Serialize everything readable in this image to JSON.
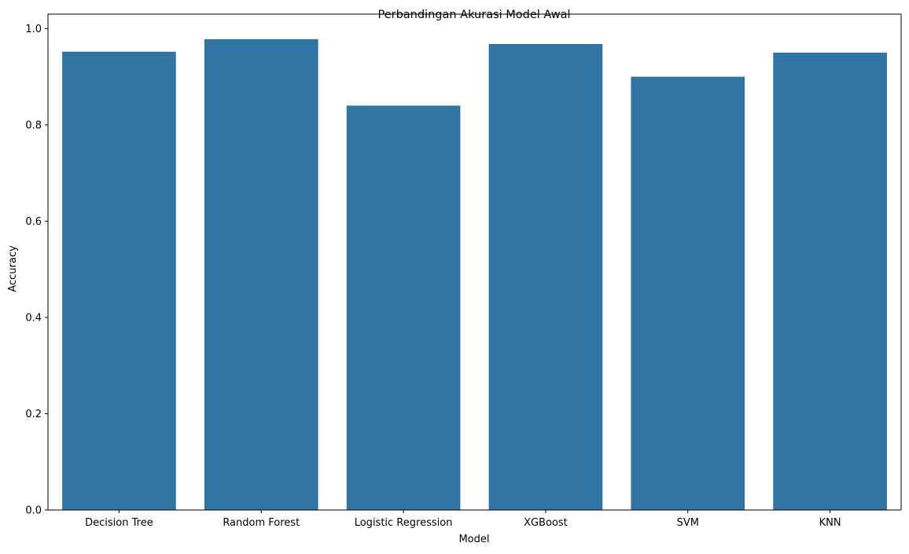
{
  "chart_data": {
    "type": "bar",
    "title": "Perbandingan Akurasi Model Awal",
    "xlabel": "Model",
    "ylabel": "Accuracy",
    "categories": [
      "Decision Tree",
      "Random Forest",
      "Logistic Regression",
      "XGBoost",
      "SVM",
      "KNN"
    ],
    "values": [
      0.952,
      0.978,
      0.84,
      0.968,
      0.9,
      0.95
    ],
    "ylim": [
      0,
      1.03
    ],
    "yticks": [
      "0.0",
      "0.2",
      "0.4",
      "0.6",
      "0.8",
      "1.0"
    ],
    "grid": false,
    "legend": "none",
    "bar_color": "#3274a1"
  }
}
